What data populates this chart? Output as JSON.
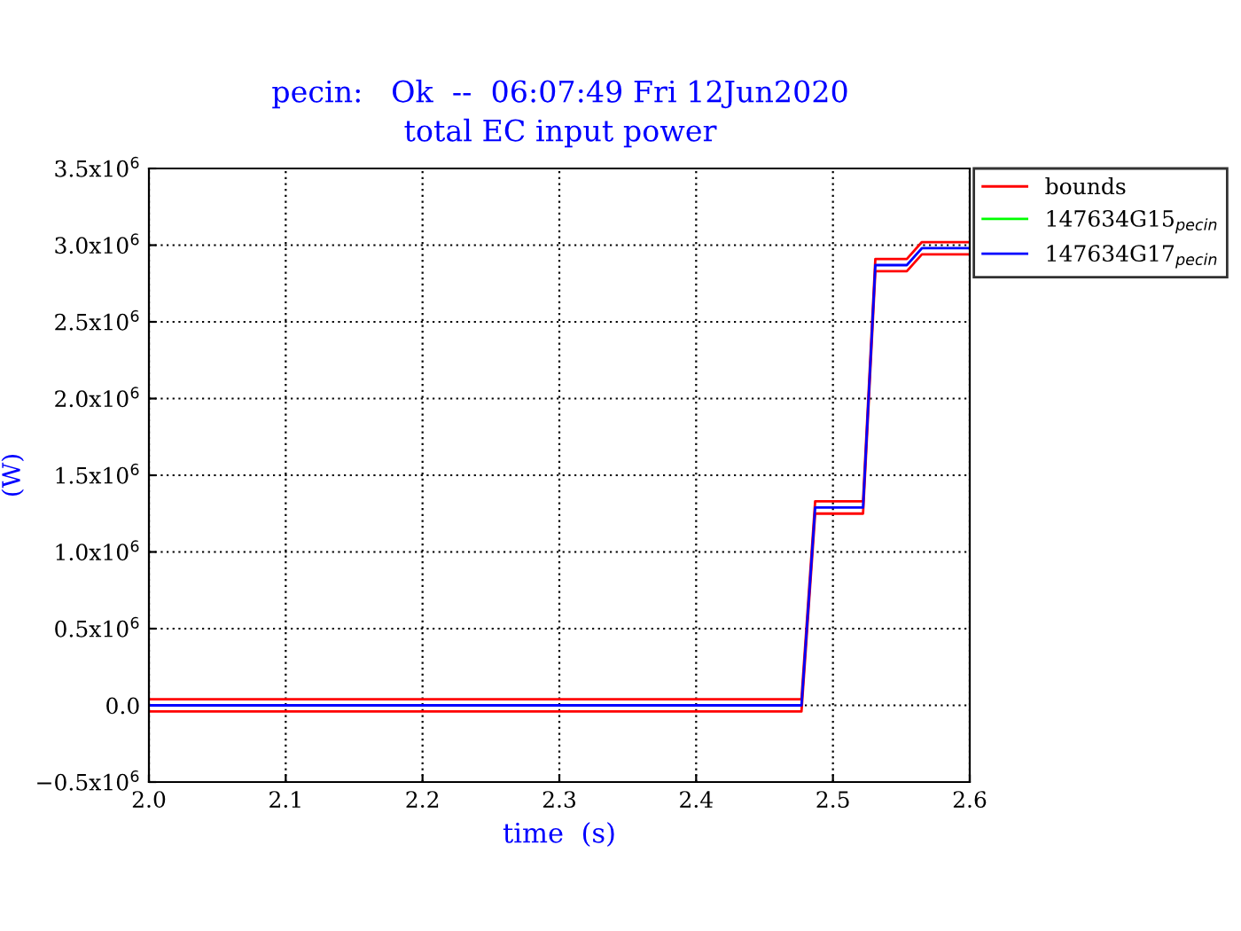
{
  "chart_data": {
    "type": "line",
    "title": "pecin:   Ok  --  06:07:49 Fri 12Jun2020",
    "subtitle": "total EC input power",
    "xlabel": "time  (s)",
    "ylabel": "(W)",
    "x": [
      2.0,
      2.477,
      2.487,
      2.522,
      2.531,
      2.554,
      2.565,
      2.6
    ],
    "series": [
      {
        "name": "bounds",
        "color": "#ff0000",
        "values": [
          40000,
          40000,
          1330000,
          1330000,
          2910000,
          2910000,
          3020000,
          3020000
        ]
      },
      {
        "color": "#ff0000",
        "values": [
          -40000,
          -40000,
          1250000,
          1250000,
          2830000,
          2830000,
          2940000,
          2940000
        ]
      },
      {
        "name": "147634G15$_{pecin}$",
        "color": "#00ff00",
        "values": [
          null,
          null,
          null,
          null,
          null,
          null,
          null,
          null
        ]
      },
      {
        "name": "147634G17$_{pecin}$",
        "color": "#0000ff",
        "values": [
          0,
          0,
          1290000,
          1290000,
          2870000,
          2870000,
          2980000,
          2980000
        ]
      }
    ],
    "xlim": [
      2.0,
      2.6
    ],
    "xticks": [
      {
        "value": 2.0,
        "label": "2.0"
      },
      2.1,
      2.2,
      2.3,
      2.4,
      2.5,
      2.6
    ],
    "ylim": [
      -500000,
      3500000
    ],
    "yticks": [
      {
        "value": -500000,
        "label": "−0.5x10$^{6}$"
      },
      {
        "value": 0,
        "label": "0.0"
      },
      {
        "value": 500000,
        "label": "0.5x10$^{6}$"
      },
      {
        "value": 1000000,
        "label": "1.0x10$^{6}$"
      },
      {
        "value": 1500000,
        "label": "1.5x10$^{6}$"
      },
      {
        "value": 2000000,
        "label": "2.0x10$^{6}$"
      },
      {
        "value": 2500000,
        "label": "2.5x10$^{6}$"
      },
      {
        "value": 3000000,
        "label": "3.0x10$^{6}$"
      },
      {
        "value": 3500000,
        "label": "3.5x10$^{6}$"
      }
    ],
    "grid": true,
    "legend": "top right",
    "marker": "none",
    "line_style": "solid"
  }
}
